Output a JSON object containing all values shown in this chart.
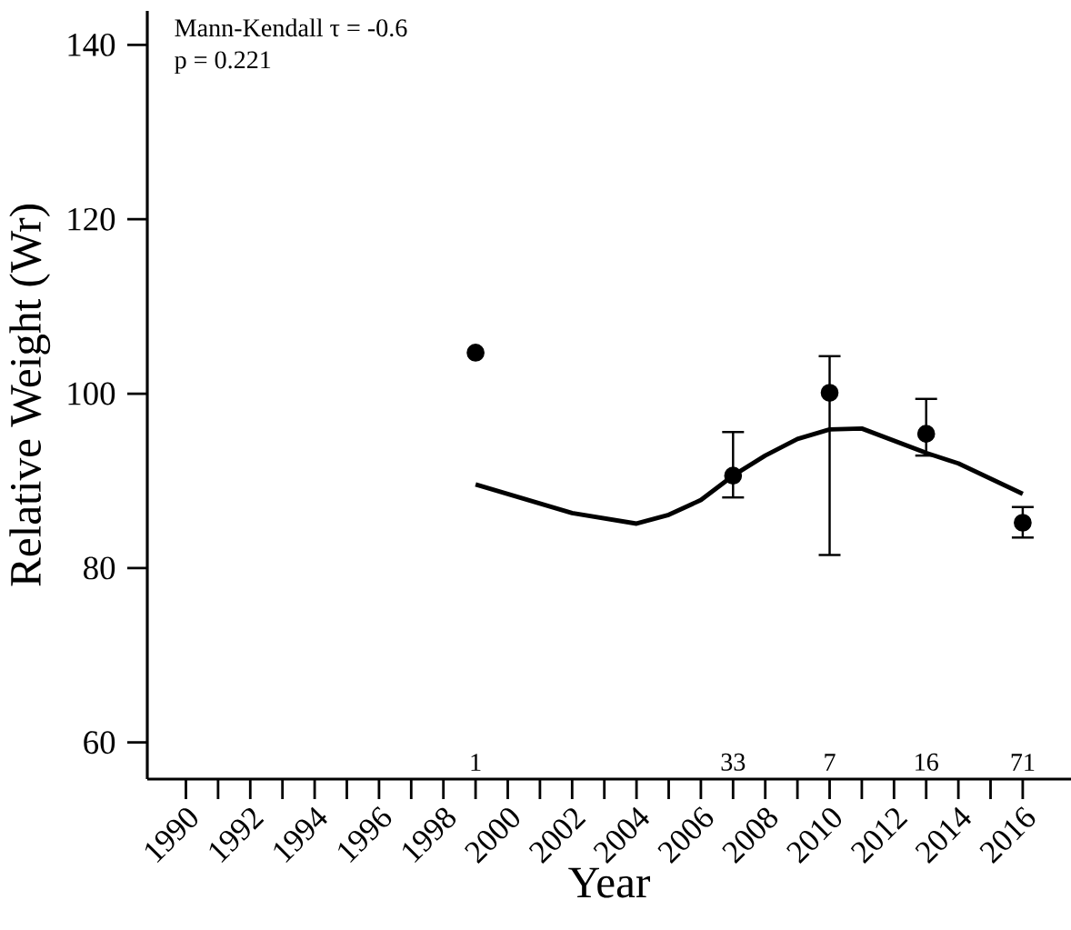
{
  "chart_data": {
    "type": "scatter",
    "xlabel": "Year",
    "ylabel": "Relative Weight (Wr)",
    "xlim": [
      1988.8,
      2017.5
    ],
    "ylim": [
      55.8,
      143.9
    ],
    "xticks": [
      1990,
      1992,
      1994,
      1996,
      1998,
      2000,
      2002,
      2004,
      2006,
      2008,
      2010,
      2012,
      2014,
      2016
    ],
    "yticks": [
      60,
      80,
      100,
      120,
      140
    ],
    "series": [
      {
        "color": "#000000",
        "marker": "circle",
        "x": [
          1999,
          2007,
          2010,
          2013,
          2016
        ],
        "values": [
          104.7,
          90.6,
          100.1,
          95.4,
          85.2
        ],
        "errors": [
          null,
          [
            88.1,
            95.6
          ],
          [
            81.5,
            104.3
          ],
          [
            92.9,
            99.4
          ],
          [
            83.5,
            87.0
          ]
        ]
      },
      {
        "type": "line",
        "color": "#000000",
        "marker": "none",
        "x": [
          1999,
          2002,
          2004,
          2005,
          2006,
          2007,
          2008,
          2009,
          2010,
          2011,
          2013,
          2014,
          2016
        ],
        "values": [
          89.6,
          86.3,
          85.1,
          86.1,
          87.8,
          90.6,
          92.9,
          94.8,
          95.9,
          96.0,
          93.2,
          92.0,
          88.5
        ]
      }
    ],
    "annotations": [
      "Mann-Kendall τ = -0.6",
      "p = 0.221",
      "1",
      "33",
      "7",
      "16",
      "71"
    ]
  }
}
